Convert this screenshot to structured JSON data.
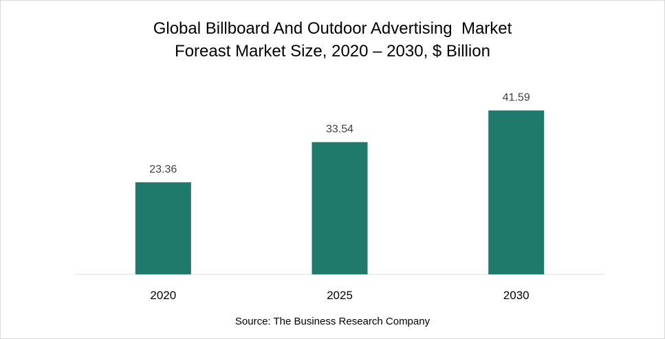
{
  "chart_data": {
    "type": "bar",
    "title_lines": [
      "Global Billboard And Outdoor Advertising  Market",
      "Foreast Market Size, 2020 – 2030, $ Billion"
    ],
    "categories": [
      "2020",
      "2025",
      "2030"
    ],
    "values": [
      23.36,
      33.54,
      41.59
    ],
    "data_labels": [
      "23.36",
      "33.54",
      "41.59"
    ],
    "xlabel": "",
    "ylabel": "",
    "ylim": [
      0,
      45
    ],
    "grid": false,
    "legend": "none",
    "bar_color": "#1f7a6b",
    "axis_color": "#d9d9d9",
    "label_color": "#404040"
  },
  "source": "Source: The Business Research Company"
}
